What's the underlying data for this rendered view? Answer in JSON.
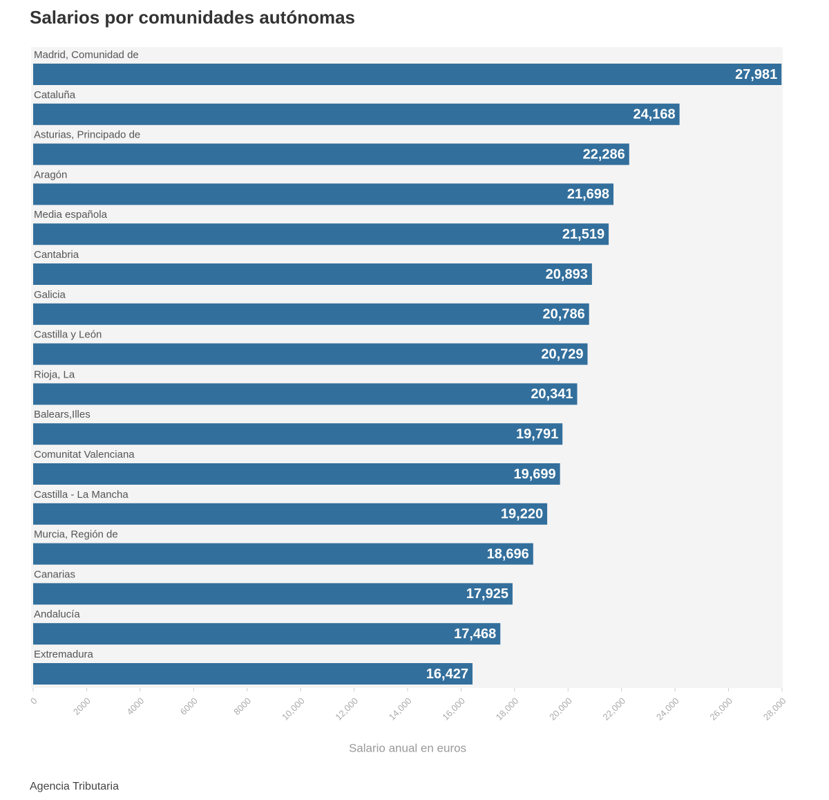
{
  "chart_data": {
    "type": "barh",
    "title": "Salarios por comunidades autónomas",
    "categories": [
      "Madrid, Comunidad de",
      "Cataluña",
      "Asturias, Principado de",
      "Aragón",
      "Media española",
      "Cantabria",
      "Galicia",
      "Castilla y León",
      "Rioja, La",
      "Balears,Illes",
      "Comunitat Valenciana",
      "Castilla - La Mancha",
      "Murcia, Región de",
      "Canarias",
      "Andalucía",
      "Extremadura"
    ],
    "values": [
      27981,
      24168,
      22286,
      21698,
      21519,
      20893,
      20786,
      20729,
      20341,
      19791,
      19699,
      19220,
      18696,
      17925,
      17468,
      16427
    ],
    "value_labels": [
      "27,981",
      "24,168",
      "22,286",
      "21,698",
      "21,519",
      "20,893",
      "20,786",
      "20,729",
      "20,341",
      "19,791",
      "19,699",
      "19,220",
      "18,696",
      "17,925",
      "17,468",
      "16,427"
    ],
    "color": "#336f9c",
    "xlim": [
      0,
      28000
    ],
    "xticks": [
      0,
      2000,
      4000,
      6000,
      8000,
      {
        "value": 10000,
        "label": "10,000"
      },
      {
        "value": 12000,
        "label": "12,000"
      },
      {
        "value": 14000,
        "label": "14,000"
      },
      {
        "value": 16000,
        "label": "16,000"
      },
      {
        "value": 18000,
        "label": "18,000"
      },
      {
        "value": 20000,
        "label": "20,000"
      },
      {
        "value": 22000,
        "label": "22,000"
      },
      {
        "value": 24000,
        "label": "24,000"
      },
      {
        "value": 26000,
        "label": "26,000"
      },
      {
        "value": 28000,
        "label": "28,000"
      }
    ],
    "xlabel": "Salario anual en euros",
    "source": "Agencia Tributaria"
  }
}
